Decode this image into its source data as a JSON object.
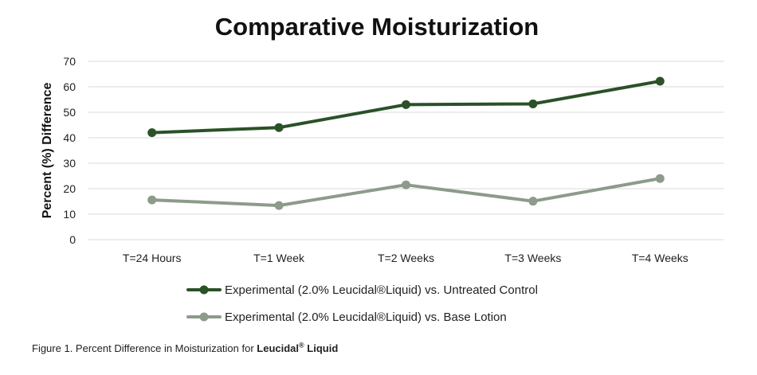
{
  "colors": {
    "series1": "#2a5128",
    "series2": "#8c9b8a",
    "grid": "#d9d9d9"
  },
  "caption": {
    "prefix": "Figure 1.  Percent Difference in Moisturization  for ",
    "brand": "Leucidal",
    "reg_mark": "®",
    "suffix": " Liquid"
  },
  "chart_data": {
    "type": "line",
    "title": "Comparative Moisturization",
    "xlabel": "",
    "ylabel": "Percent (%) Difference",
    "categories": [
      "T=24 Hours",
      "T=1 Week",
      "T=2 Weeks",
      "T=3 Weeks",
      "T=4 Weeks"
    ],
    "ylim": [
      0,
      70
    ],
    "yticks": [
      0,
      10,
      20,
      30,
      40,
      50,
      60,
      70
    ],
    "grid": true,
    "legend_position": "bottom",
    "series": [
      {
        "name": "Experimental (2.0% Leucidal®Liquid) vs. Untreated Control",
        "values": [
          42,
          44,
          53,
          53.3,
          62.2
        ]
      },
      {
        "name": "Experimental (2.0% Leucidal®Liquid) vs. Base Lotion",
        "values": [
          15.6,
          13.4,
          21.5,
          15.1,
          24
        ]
      }
    ]
  }
}
